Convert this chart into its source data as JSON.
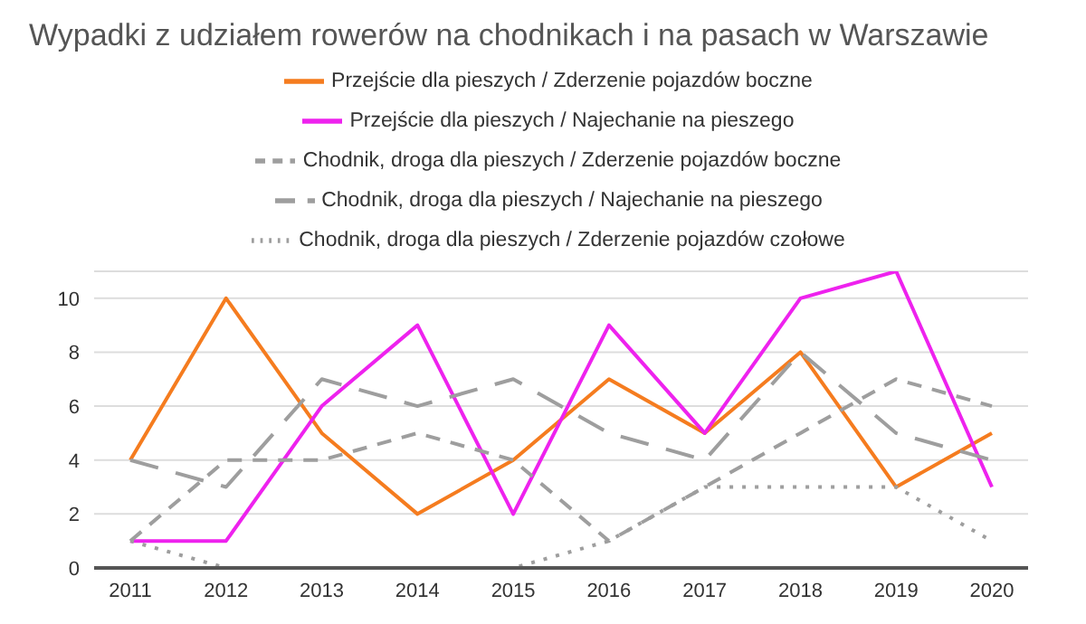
{
  "chart_data": {
    "type": "line",
    "title": "Wypadki z udziałem rowerów na chodnikach i na pasach w Warszawie",
    "categories": [
      "2011",
      "2012",
      "2013",
      "2014",
      "2015",
      "2016",
      "2017",
      "2018",
      "2019",
      "2020"
    ],
    "series": [
      {
        "name": "Przejście dla pieszych / Zderzenie pojazdów boczne",
        "color": "#f57c1f",
        "line_style": "solid",
        "values": [
          4,
          10,
          5,
          2,
          4,
          7,
          5,
          8,
          3,
          5
        ]
      },
      {
        "name": "Przejście dla pieszych / Najechanie na pieszego",
        "color": "#ee22ee",
        "line_style": "solid",
        "values": [
          1,
          1,
          6,
          9,
          2,
          9,
          5,
          10,
          11,
          3
        ]
      },
      {
        "name": "Chodnik, droga dla pieszych / Zderzenie pojazdów boczne",
        "color": "#9e9e9e",
        "line_style": "dashed",
        "values": [
          1,
          4,
          4,
          5,
          4,
          1,
          3,
          5,
          7,
          6
        ]
      },
      {
        "name": "Chodnik, droga dla pieszych / Najechanie na pieszego",
        "color": "#9e9e9e",
        "line_style": "dashed",
        "values": [
          4,
          3,
          7,
          6,
          7,
          5,
          4,
          8,
          5,
          4
        ]
      },
      {
        "name": "Chodnik, droga dla pieszych / Zderzenie pojazdów czołowe",
        "color": "#9e9e9e",
        "line_style": "dotted",
        "values": [
          1,
          0,
          0,
          0,
          0,
          1,
          3,
          3,
          3,
          1
        ]
      }
    ],
    "ylim": [
      0,
      11
    ],
    "yticks": [
      0,
      2,
      4,
      6,
      8,
      10
    ],
    "grid": "y",
    "legend": "top",
    "marker": "none"
  }
}
